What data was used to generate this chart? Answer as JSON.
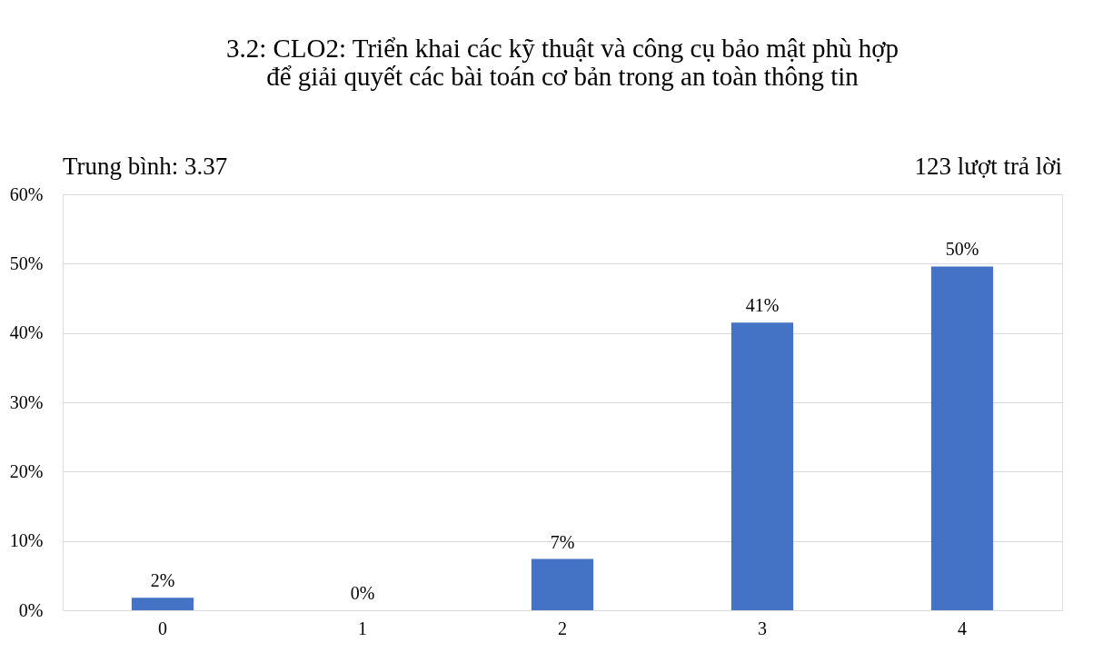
{
  "chart_data": {
    "type": "bar",
    "title": "3.2: CLO2: Triển khai các kỹ thuật và công cụ bảo mật phù hợp để giải quyết các bài toán cơ bản trong an toàn thông tin",
    "annotations": [
      "Trung bình: 3.37",
      "123 lượt trả lời"
    ],
    "categories": [
      "0",
      "1",
      "2",
      "3",
      "4"
    ],
    "values": [
      1.8,
      0,
      7.4,
      41.5,
      49.6
    ],
    "value_labels": [
      "2%",
      "0%",
      "7%",
      "41%",
      "50%"
    ],
    "color": "#4472c4",
    "ylim": [
      0,
      60
    ],
    "yticks": [
      {
        "value": 0,
        "label": "0%"
      },
      {
        "value": 10,
        "label": "10%"
      },
      {
        "value": 20,
        "label": "20%"
      },
      {
        "value": 30,
        "label": "30%"
      },
      {
        "value": 40,
        "label": "40%"
      },
      {
        "value": 50,
        "label": "50%"
      },
      {
        "value": 60,
        "label": "60%"
      }
    ],
    "grid": "y"
  }
}
